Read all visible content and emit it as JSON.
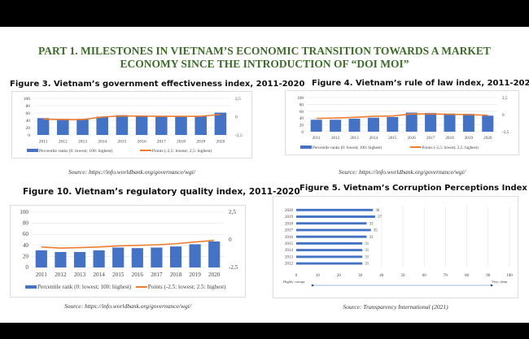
{
  "heading": "PART 1. MILESTONES IN VIETNAM’S ECONOMIC TRANSITION TOWARDS A MARKET ECONOMY SINCE THE INTRODUCTION OF “DOI MOI”",
  "colors": {
    "bar": "#4472c4",
    "line": "#ed7d31",
    "heading": "#3d6b2a"
  },
  "chart_data": [
    {
      "id": "fig3",
      "type": "bar+line",
      "title": "Figure 3. Vietnam’s government effectiveness index, 2011-2020",
      "source": "Source: https://info.worldbank.org/governance/wgi/",
      "categories": [
        "2011",
        "2012",
        "2013",
        "2014",
        "2015",
        "2016",
        "2017",
        "2018",
        "2019",
        "2020"
      ],
      "y_ticks": [
        "100",
        "80",
        "60",
        "40",
        "20",
        "0"
      ],
      "y2_ticks": [
        "2,5",
        "0",
        "-2,5"
      ],
      "ylim": [
        0,
        100
      ],
      "y2lim": [
        -2.5,
        2.5
      ],
      "series": [
        {
          "name": "Percentile ranks (0: lowest; 100: highest)",
          "type": "bar",
          "values": [
            46,
            44,
            44,
            50,
            54,
            53,
            51,
            51,
            51,
            61
          ]
        },
        {
          "name": "Points (-2,5: lowest; 2,5: highest)",
          "type": "line",
          "values": [
            -0.33,
            -0.4,
            -0.4,
            -0.05,
            0.1,
            0.07,
            0.05,
            0.05,
            0.05,
            0.3
          ]
        }
      ]
    },
    {
      "id": "fig4",
      "type": "bar+line",
      "title": "Figure 4. Vietnam’s rule of law index, 2011-2020",
      "source": "Source: https://info.worldbank.org/governance/wgi/",
      "categories": [
        "2011",
        "2012",
        "2013",
        "2014",
        "2015",
        "2016",
        "2017",
        "2018",
        "2019",
        "2020"
      ],
      "y_ticks": [
        "100",
        "80",
        "60",
        "40",
        "20",
        "0"
      ],
      "y2_ticks": [
        "2,5",
        "0",
        "-2,5"
      ],
      "ylim": [
        0,
        100
      ],
      "y2lim": [
        -2.5,
        2.5
      ],
      "series": [
        {
          "name": "Percentile ranks (0: lowest; 100: highest)",
          "type": "bar",
          "values": [
            35,
            35,
            38,
            41,
            43,
            56,
            55,
            53,
            52,
            47
          ]
        },
        {
          "name": "Points (-2,5: lowest; 2,5: highest)",
          "type": "line",
          "values": [
            -0.55,
            -0.5,
            -0.4,
            -0.25,
            -0.2,
            0.1,
            0.1,
            0.05,
            0,
            -0.1
          ]
        }
      ]
    },
    {
      "id": "fig10",
      "type": "bar+line",
      "title": "Figure 10. Vietnam’s regulatory quality index, 2011-2020",
      "source": "Source: https://info.worldbank.org/governance/wgi/",
      "categories": [
        "2011",
        "2012",
        "2013",
        "2014",
        "2015",
        "2016",
        "2017",
        "2018",
        "2019",
        "2020"
      ],
      "y_ticks": [
        "100",
        "80",
        "60",
        "40",
        "20",
        "0"
      ],
      "y2_ticks": [
        "2,5",
        "0",
        "-2,5"
      ],
      "ylim": [
        0,
        100
      ],
      "y2lim": [
        -2.5,
        2.5
      ],
      "series": [
        {
          "name": "Percentile rank (0: lowest; 100: highest)",
          "type": "bar",
          "values": [
            31,
            28,
            28,
            31,
            36,
            35,
            36,
            38,
            42,
            47
          ]
        },
        {
          "name": "Points (-2.5: lowest; 2.5: highest)",
          "type": "line",
          "values": [
            -0.65,
            -0.75,
            -0.7,
            -0.65,
            -0.55,
            -0.5,
            -0.45,
            -0.35,
            -0.2,
            -0.05
          ]
        }
      ]
    },
    {
      "id": "fig5",
      "type": "hbar",
      "title": "Figure 5. Vietnam’s Corruption Perceptions Index",
      "source": "Source: Transparency International (2021)",
      "categories": [
        "2020",
        "2019",
        "2018",
        "2017",
        "2016",
        "2015",
        "2014",
        "2013",
        "2012"
      ],
      "values": [
        36,
        37,
        33,
        35,
        33,
        31,
        31,
        31,
        31
      ],
      "data_labels": [
        "36",
        "37",
        "33",
        "35",
        "33",
        "31",
        "31",
        "31",
        "31"
      ],
      "x_ticks": [
        "0",
        "10",
        "20",
        "30",
        "40",
        "50",
        "60",
        "70",
        "80",
        "90",
        "100"
      ],
      "xlim": [
        0,
        100
      ],
      "scale_left": "Highly corrupt",
      "scale_right": "Very clean"
    }
  ]
}
